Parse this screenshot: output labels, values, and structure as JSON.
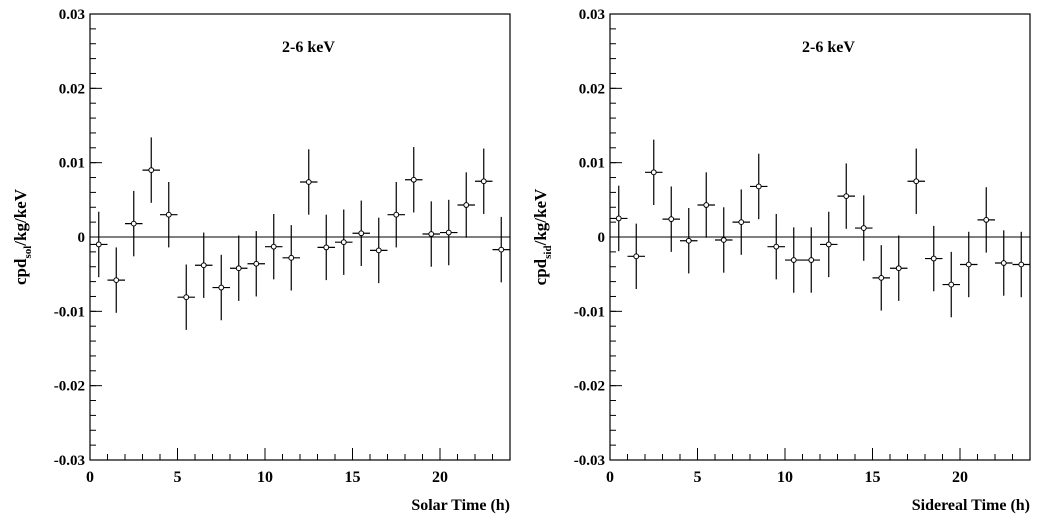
{
  "colors": {
    "axis": "#000000",
    "marker_fill": "#ffffff",
    "background": "#ffffff"
  },
  "chart_data": [
    {
      "type": "scatter",
      "annotation": "2-6 keV",
      "xlabel": "Solar Time (h)",
      "ylabel_main": "cpd",
      "ylabel_sub": "sol",
      "ylabel_rest": "/kg/keV",
      "xlim": [
        0,
        24
      ],
      "ylim": [
        -0.03,
        0.03
      ],
      "x_ticks": [
        0,
        5,
        10,
        15,
        20
      ],
      "x_tick_labels": [
        "0",
        "5",
        "10",
        "15",
        "20"
      ],
      "y_ticks": [
        -0.03,
        -0.02,
        -0.01,
        0,
        0.01,
        0.02,
        0.03
      ],
      "y_tick_labels": [
        "-0.03",
        "-0.02",
        "-0.01",
        "0",
        "0.01",
        "0.02",
        "0.03"
      ],
      "x_err": 0.5,
      "y_err": 0.0044,
      "reference_line": 0,
      "grid": false,
      "x": [
        0.5,
        1.5,
        2.5,
        3.5,
        4.5,
        5.5,
        6.5,
        7.5,
        8.5,
        9.5,
        10.5,
        11.5,
        12.5,
        13.5,
        14.5,
        15.5,
        16.5,
        17.5,
        18.5,
        19.5,
        20.5,
        21.5,
        22.5,
        23.5
      ],
      "y": [
        -0.001,
        -0.0058,
        0.0018,
        0.009,
        0.003,
        -0.0081,
        -0.0038,
        -0.0068,
        -0.0042,
        -0.0036,
        -0.0013,
        -0.0028,
        0.0074,
        -0.0014,
        -0.0007,
        0.0005,
        -0.0018,
        0.003,
        0.0077,
        0.0004,
        0.0006,
        0.0043,
        0.0075,
        -0.0017
      ]
    },
    {
      "type": "scatter",
      "annotation": "2-6 keV",
      "xlabel": "Sidereal Time (h)",
      "ylabel_main": "cpd",
      "ylabel_sub": "sid",
      "ylabel_rest": "/kg/keV",
      "xlim": [
        0,
        24
      ],
      "ylim": [
        -0.03,
        0.03
      ],
      "x_ticks": [
        0,
        5,
        10,
        15,
        20
      ],
      "x_tick_labels": [
        "0",
        "5",
        "10",
        "15",
        "20"
      ],
      "y_ticks": [
        -0.03,
        -0.02,
        -0.01,
        0,
        0.01,
        0.02,
        0.03
      ],
      "y_tick_labels": [
        "-0.03",
        "-0.02",
        "-0.01",
        "0",
        "0.01",
        "0.02",
        "0.03"
      ],
      "x_err": 0.5,
      "y_err": 0.0044,
      "reference_line": 0,
      "grid": false,
      "x": [
        0.5,
        1.5,
        2.5,
        3.5,
        4.5,
        5.5,
        6.5,
        7.5,
        8.5,
        9.5,
        10.5,
        11.5,
        12.5,
        13.5,
        14.5,
        15.5,
        16.5,
        17.5,
        18.5,
        19.5,
        20.5,
        21.5,
        22.5,
        23.5
      ],
      "y": [
        0.0025,
        -0.0026,
        0.0087,
        0.0024,
        -0.0005,
        0.0043,
        -0.0004,
        0.002,
        0.0068,
        -0.0013,
        -0.0031,
        -0.0031,
        -0.001,
        0.0055,
        0.0012,
        -0.0055,
        -0.0042,
        0.0075,
        -0.0029,
        -0.0064,
        -0.0037,
        0.0023,
        -0.0035,
        -0.0037
      ]
    }
  ]
}
